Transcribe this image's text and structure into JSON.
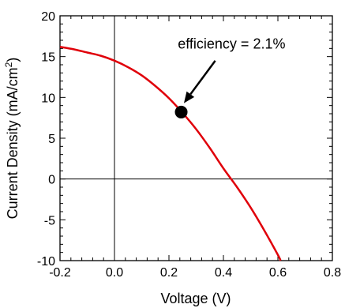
{
  "chart_data": {
    "type": "line",
    "title": "",
    "xlabel": "Voltage (V)",
    "ylabel_main": "Current Density (mA/cm",
    "ylabel_sup": "2",
    "ylabel_close": ")",
    "xlim": [
      -0.2,
      0.8
    ],
    "ylim": [
      -10,
      20
    ],
    "x_ticks": [
      -0.2,
      0.0,
      0.2,
      0.4,
      0.6,
      0.8
    ],
    "x_tick_labels": [
      "-0.2",
      "0.0",
      "0.2",
      "0.4",
      "0.6",
      "0.8"
    ],
    "y_ticks": [
      -10,
      -5,
      0,
      5,
      10,
      15,
      20
    ],
    "y_tick_labels": [
      "-10",
      "-5",
      "0",
      "5",
      "10",
      "15",
      "20"
    ],
    "grid": false,
    "series": [
      {
        "color": "#e0000a",
        "x": [
          -0.2,
          -0.15,
          -0.1,
          -0.05,
          0.0,
          0.05,
          0.1,
          0.15,
          0.2,
          0.25,
          0.3,
          0.35,
          0.4,
          0.45,
          0.5,
          0.55,
          0.6,
          0.61
        ],
        "y": [
          16.2,
          15.9,
          15.5,
          15.1,
          14.5,
          13.7,
          12.7,
          11.4,
          9.9,
          8.1,
          6.1,
          3.8,
          1.3,
          -1.0,
          -3.5,
          -6.3,
          -9.3,
          -10.0
        ]
      }
    ],
    "marker_point": {
      "x": 0.245,
      "y": 8.2,
      "color": "#000000"
    },
    "annotation": {
      "text": "efficiency = 2.1%",
      "text_x": 0.43,
      "text_y": 16.0,
      "arrow_from": [
        0.37,
        14.5
      ],
      "arrow_to": [
        0.255,
        9.3
      ]
    }
  }
}
